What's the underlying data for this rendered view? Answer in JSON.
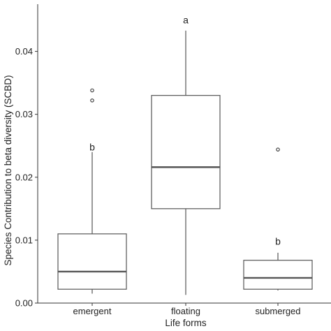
{
  "chart_data": {
    "type": "boxplot",
    "xlabel": "Life forms",
    "ylabel": "Species Contribution to beta diversity (SCBD)",
    "ylim": [
      0,
      0.0475
    ],
    "yticks": [
      0.0,
      0.01,
      0.02,
      0.03,
      0.04
    ],
    "ytick_labels": [
      "0.00",
      "0.01",
      "0.02",
      "0.03",
      "0.04"
    ],
    "grid": false,
    "categories": [
      "emergent",
      "floating",
      "submerged"
    ],
    "boxes": [
      {
        "label": "emergent",
        "whisker_low": 0.0015,
        "q1": 0.0022,
        "median": 0.005,
        "q3": 0.011,
        "whisker_high": 0.024,
        "outliers": [
          0.0322,
          0.0338
        ],
        "letter": "b",
        "letter_y": 0.0248
      },
      {
        "label": "floating",
        "whisker_low": 0.0013,
        "q1": 0.015,
        "median": 0.0216,
        "q3": 0.033,
        "whisker_high": 0.0433,
        "outliers": [],
        "letter": "a",
        "letter_y": 0.045
      },
      {
        "label": "submerged",
        "whisker_low": 0.002,
        "q1": 0.0022,
        "median": 0.004,
        "q3": 0.0068,
        "whisker_high": 0.008,
        "outliers": [
          0.0244
        ],
        "letter": "b",
        "letter_y": 0.0098
      }
    ],
    "colors": {
      "box_stroke": "#555555",
      "median": "#555555",
      "axis": "#333333",
      "text": "#222222"
    }
  }
}
